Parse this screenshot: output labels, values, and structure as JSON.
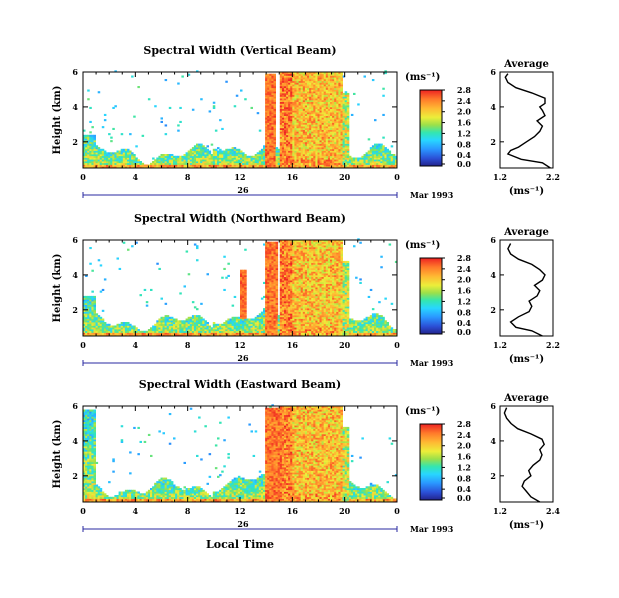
{
  "figure": {
    "xlabel": "Local Time",
    "date_label": "Mar 1993",
    "day_label": "26"
  },
  "chart_data": [
    {
      "type": "heatmap",
      "title": "Spectral Width (Vertical Beam)",
      "ylabel": "Height (km)",
      "xticks": [
        "0",
        "4",
        "8",
        "12",
        "16",
        "20",
        "0"
      ],
      "xlim": [
        0,
        24
      ],
      "yticks": [
        "2",
        "4",
        "6"
      ],
      "ylim": [
        0.5,
        6
      ],
      "colorbar": {
        "label": "(ms⁻¹)",
        "ticks": [
          "0.0",
          "0.4",
          "0.8",
          "1.2",
          "1.6",
          "2.0",
          "2.4",
          "2.8"
        ]
      },
      "average": {
        "title": "Average",
        "xlabel": "(ms⁻¹)",
        "xticks": [
          "1.2",
          "2.2"
        ],
        "xlim": [
          1.2,
          2.2
        ],
        "yticks": [
          "2",
          "4",
          "6"
        ],
        "height": [
          0.5,
          0.8,
          1.0,
          1.3,
          1.5,
          1.7,
          2.0,
          2.3,
          2.6,
          2.9,
          3.2,
          3.5,
          3.8,
          4.0,
          4.2,
          4.5,
          4.8,
          5.1,
          5.4,
          5.7,
          5.9
        ],
        "width": [
          2.15,
          2.0,
          1.6,
          1.35,
          1.4,
          1.55,
          1.7,
          1.85,
          1.95,
          2.0,
          1.9,
          2.05,
          2.0,
          1.95,
          2.05,
          2.05,
          1.8,
          1.5,
          1.35,
          1.3,
          1.35
        ]
      }
    },
    {
      "type": "heatmap",
      "title": "Spectral Width (Northward Beam)",
      "ylabel": "Height (km)",
      "xticks": [
        "0",
        "4",
        "8",
        "12",
        "16",
        "20",
        "0"
      ],
      "xlim": [
        0,
        24
      ],
      "yticks": [
        "2",
        "4",
        "6"
      ],
      "ylim": [
        0.5,
        6
      ],
      "colorbar": {
        "label": "(ms⁻¹)",
        "ticks": [
          "0.0",
          "0.4",
          "0.8",
          "1.2",
          "1.6",
          "2.0",
          "2.4",
          "2.8"
        ]
      },
      "average": {
        "title": "Average",
        "xlabel": "(ms⁻¹)",
        "xticks": [
          "1.2",
          "2.2"
        ],
        "xlim": [
          1.2,
          2.2
        ],
        "yticks": [
          "2",
          "4",
          "6"
        ],
        "height": [
          0.5,
          0.8,
          1.0,
          1.3,
          1.6,
          1.9,
          2.2,
          2.5,
          2.8,
          3.1,
          3.4,
          3.7,
          4.0,
          4.3,
          4.6,
          4.9,
          5.2,
          5.5,
          5.8
        ],
        "width": [
          2.0,
          1.8,
          1.5,
          1.4,
          1.55,
          1.75,
          1.8,
          1.75,
          1.9,
          1.95,
          1.85,
          2.0,
          2.05,
          1.95,
          1.8,
          1.55,
          1.4,
          1.35,
          1.4
        ]
      }
    },
    {
      "type": "heatmap",
      "title": "Spectral Width (Eastward Beam)",
      "ylabel": "Height (km)",
      "xticks": [
        "0",
        "4",
        "8",
        "12",
        "16",
        "20",
        "0"
      ],
      "xlim": [
        0,
        24
      ],
      "yticks": [
        "2",
        "4",
        "6"
      ],
      "ylim": [
        0.5,
        6
      ],
      "colorbar": {
        "label": "(ms⁻¹)",
        "ticks": [
          "0.0",
          "0.4",
          "0.8",
          "1.2",
          "1.6",
          "2.0",
          "2.4",
          "2.8"
        ]
      },
      "average": {
        "title": "Average",
        "xlabel": "(ms⁻¹)",
        "xticks": [
          "1.2",
          "2.4"
        ],
        "xlim": [
          1.2,
          2.4
        ],
        "yticks": [
          "2",
          "4",
          "6"
        ],
        "height": [
          0.5,
          0.8,
          1.1,
          1.4,
          1.7,
          2.0,
          2.3,
          2.6,
          2.9,
          3.2,
          3.5,
          3.8,
          4.1,
          4.4,
          4.7,
          5.0,
          5.3,
          5.6,
          5.9
        ],
        "width": [
          2.1,
          1.9,
          1.8,
          1.7,
          1.75,
          1.9,
          1.85,
          1.95,
          2.1,
          2.15,
          2.1,
          2.2,
          2.15,
          1.9,
          1.6,
          1.45,
          1.35,
          1.3,
          1.35
        ]
      }
    }
  ]
}
